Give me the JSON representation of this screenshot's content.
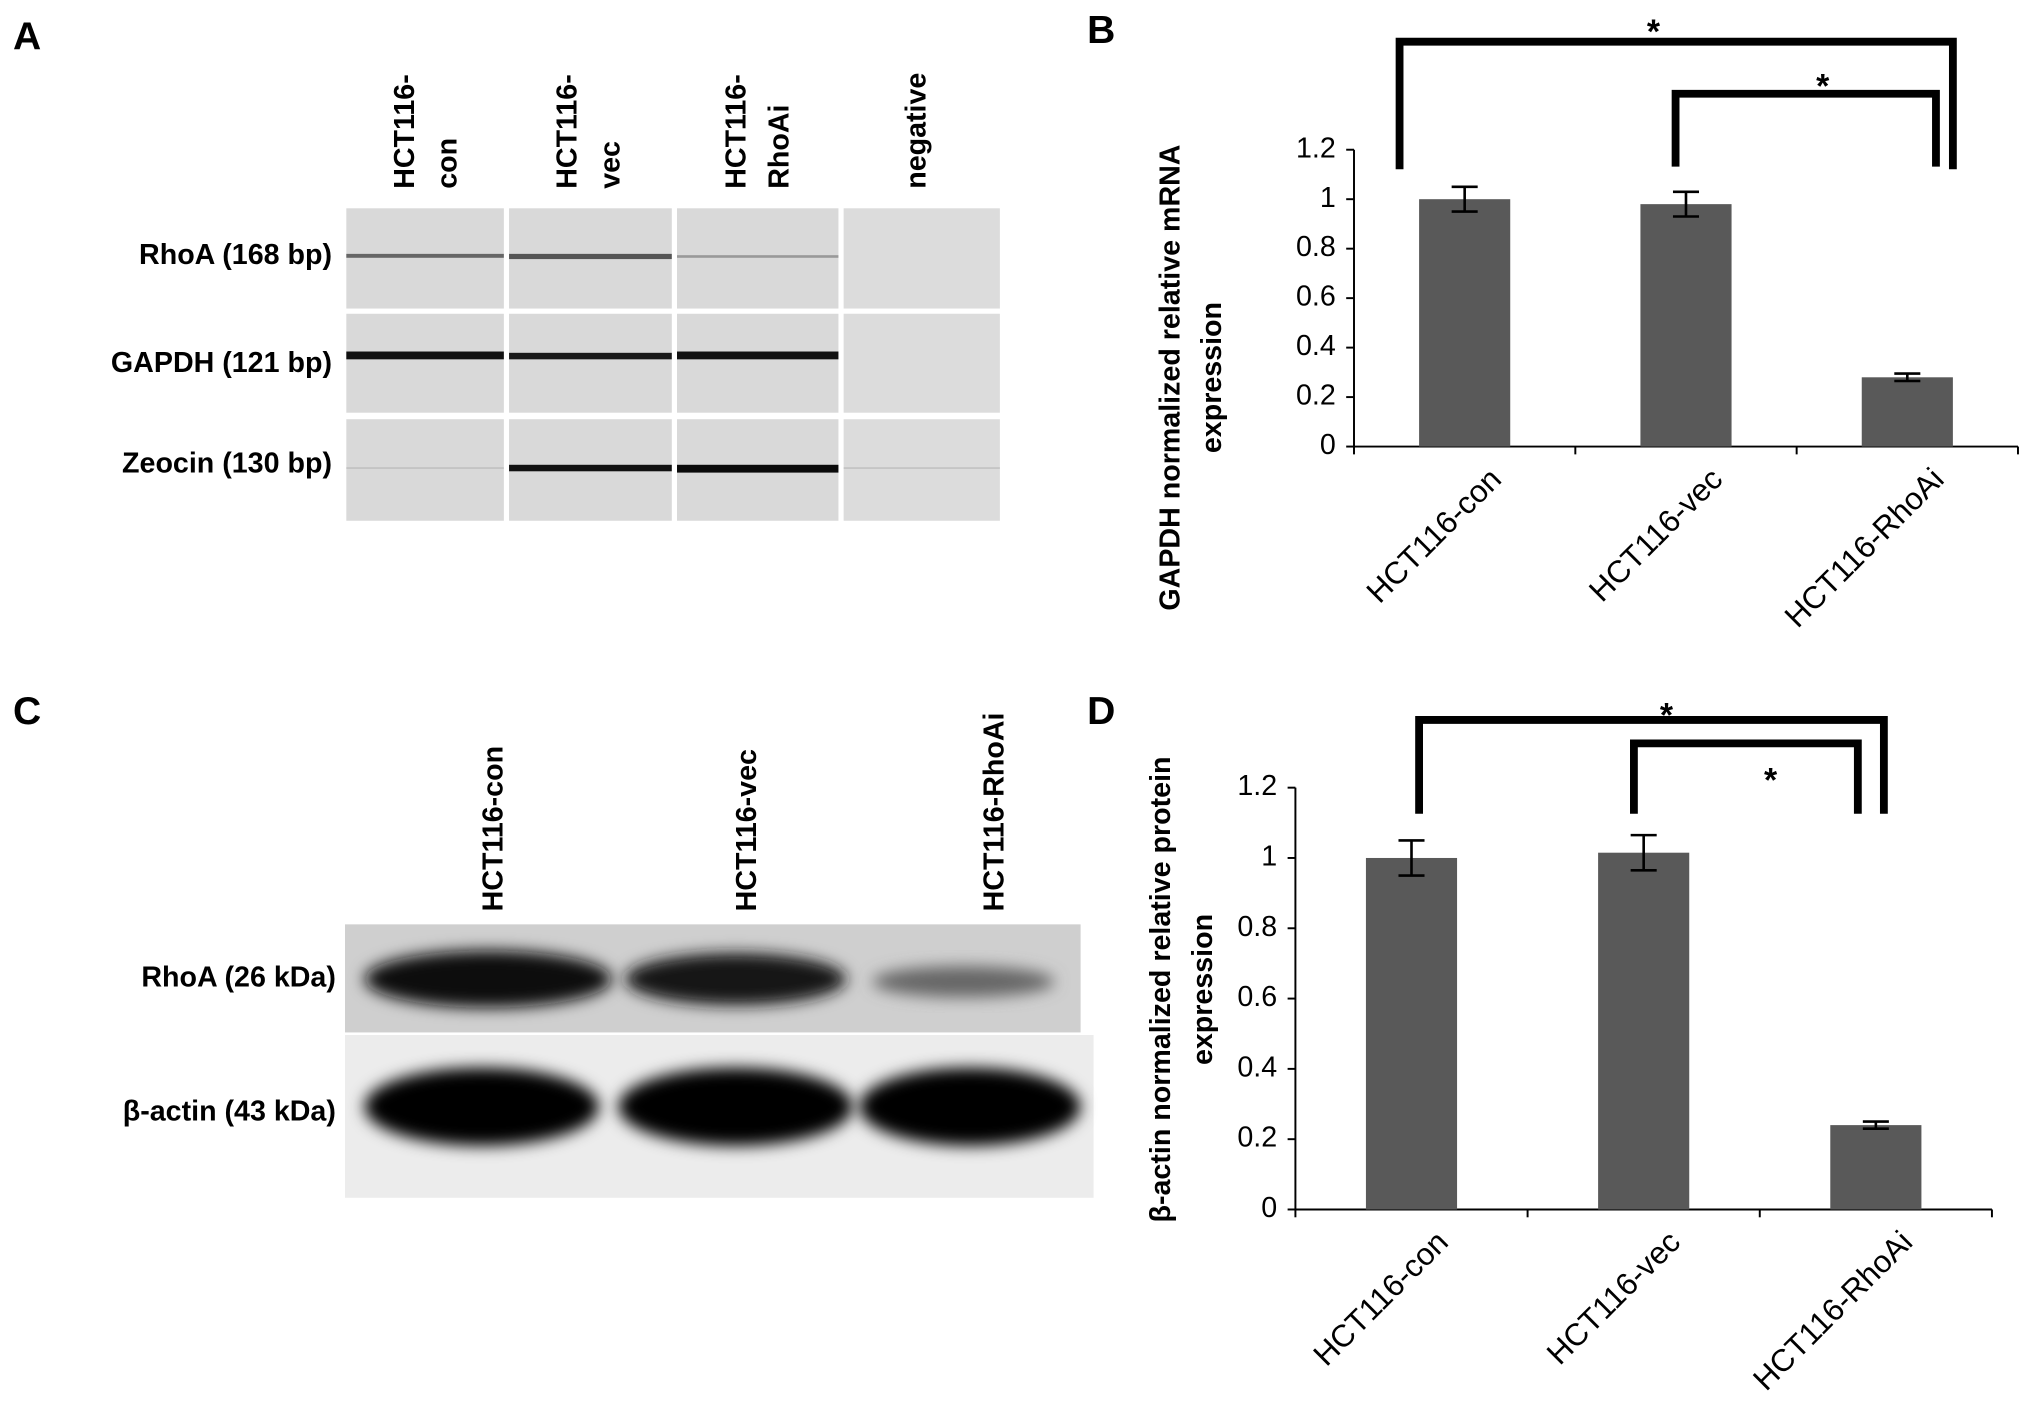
{
  "panel_labels": [
    "A",
    "B",
    "C",
    "D"
  ],
  "gel": {
    "lanes": [
      [
        "HCT116-",
        "con"
      ],
      [
        "HCT116-",
        "vec"
      ],
      [
        "HCT116-",
        "RhoAi"
      ],
      [
        "negative"
      ]
    ],
    "rows": [
      "RhoA (168 bp)",
      "GAPDH (121 bp)",
      "Zeocin (130 bp)"
    ]
  },
  "blot": {
    "lanes": [
      "HCT116-con",
      "HCT116-vec",
      "HCT116-RhoAi"
    ],
    "rows": [
      "RhoA (26 kDa)",
      "β-actin (43 kDa)"
    ]
  },
  "chart_data": [
    {
      "type": "bar",
      "ylabel": [
        "GAPDH normalized relative mRNA",
        "expression"
      ],
      "categories": [
        "HCT116-con",
        "HCT116-vec",
        "HCT116-RhoAi"
      ],
      "values": [
        1.0,
        0.98,
        0.28
      ],
      "errors": [
        0.05,
        0.05,
        0.015
      ],
      "color": "#595959",
      "ylim": [
        0,
        1.2
      ],
      "yticks": [
        0,
        0.2,
        0.4,
        0.6,
        0.8,
        1,
        1.2
      ],
      "annotations": [
        "*",
        "*"
      ]
    },
    {
      "type": "bar",
      "ylabel": [
        "β-actin normalized relative protein",
        "expression"
      ],
      "categories": [
        "HCT116-con",
        "HCT116-vec",
        "HCT116-RhoAi"
      ],
      "values": [
        1.0,
        1.015,
        0.24
      ],
      "errors": [
        0.05,
        0.05,
        0.01
      ],
      "color": "#595959",
      "ylim": [
        0,
        1.2
      ],
      "yticks": [
        0,
        0.2,
        0.4,
        0.6,
        0.8,
        1,
        1.2
      ],
      "annotations": [
        "*",
        "*"
      ]
    }
  ]
}
